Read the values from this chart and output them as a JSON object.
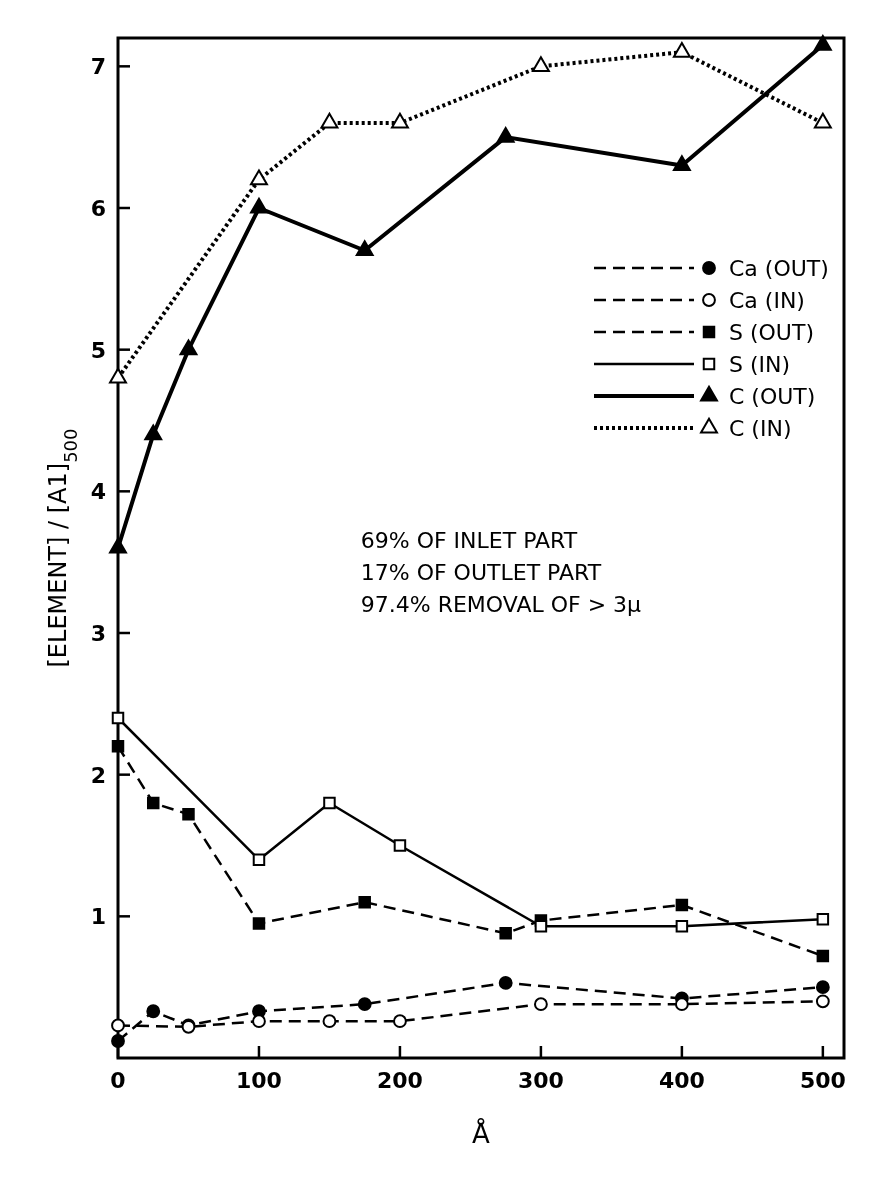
{
  "chart_data": {
    "type": "line",
    "xlabel": "Å",
    "ylabel": "[ELEMENT] / [A1]$_{500}$",
    "xlim": [
      0,
      515
    ],
    "ylim": [
      0,
      7.2
    ],
    "xticks": [
      0,
      100,
      200,
      300,
      400,
      500
    ],
    "yticks": [
      1,
      2,
      3,
      4,
      5,
      6,
      7
    ],
    "grid": false,
    "legend": "right",
    "annotations": [
      "69% OF INLET PART",
      "17% OF OUTLET PART",
      "97.4% REMOVAL OF > 3μ"
    ],
    "series": [
      {
        "name": "Ca (OUT)",
        "color": "#000000",
        "marker": "circle",
        "line_style": "dashed",
        "x": [
          0,
          25,
          50,
          100,
          175,
          275,
          400,
          500
        ],
        "values": [
          0.12,
          0.33,
          0.23,
          0.33,
          0.38,
          0.53,
          0.42,
          0.5
        ]
      },
      {
        "name": "Ca (IN)",
        "color": "#000000",
        "marker": "circle",
        "line_style": "dashed",
        "x": [
          0,
          50,
          100,
          150,
          200,
          300,
          400,
          500
        ],
        "values": [
          0.23,
          0.22,
          0.26,
          0.26,
          0.26,
          0.38,
          0.38,
          0.4
        ]
      },
      {
        "name": "S (OUT)",
        "color": "#000000",
        "marker": "square",
        "line_style": "dashed",
        "x": [
          0,
          25,
          50,
          100,
          175,
          275,
          300,
          400,
          500
        ],
        "values": [
          2.2,
          1.8,
          1.72,
          0.95,
          1.1,
          0.88,
          0.97,
          1.08,
          0.72
        ]
      },
      {
        "name": "S (IN)",
        "color": "#000000",
        "marker": "square",
        "line_style": "solid",
        "x": [
          0,
          100,
          150,
          200,
          300,
          400,
          500
        ],
        "values": [
          2.4,
          1.4,
          1.8,
          1.5,
          0.93,
          0.93,
          0.98
        ]
      },
      {
        "name": "C (OUT)",
        "color": "#000000",
        "marker": "triangle",
        "line_style": "solid",
        "x": [
          0,
          25,
          50,
          100,
          175,
          275,
          400,
          500
        ],
        "values": [
          3.6,
          4.4,
          5.0,
          6.0,
          5.7,
          6.5,
          6.3,
          7.15
        ]
      },
      {
        "name": "C (IN)",
        "color": "#000000",
        "marker": "triangle",
        "line_style": "dotted",
        "x": [
          0,
          100,
          150,
          200,
          300,
          400,
          500
        ],
        "values": [
          4.8,
          6.2,
          6.6,
          6.6,
          7.0,
          7.1,
          6.6
        ]
      }
    ]
  }
}
